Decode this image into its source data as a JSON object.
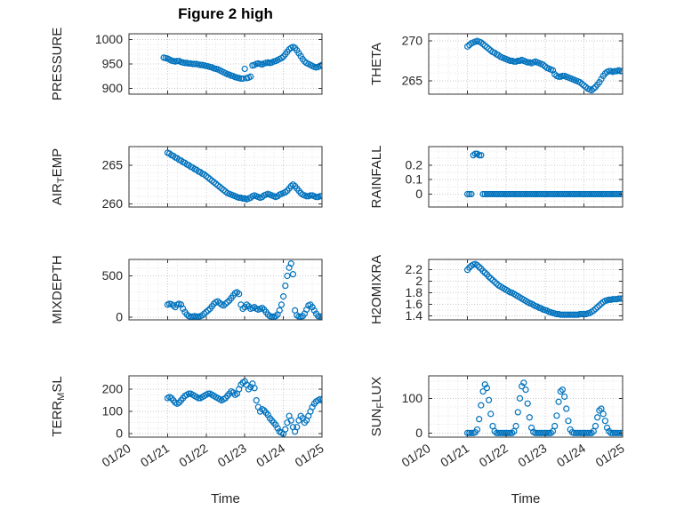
{
  "figure": {
    "title": "Figure 2 high",
    "accent": "#0072BD",
    "axis_color": "#333333",
    "text_color": "#262626",
    "grid_major": "#c9c9c9",
    "grid_minor": "#e6e6e6",
    "background": "#ffffff"
  },
  "xaxis": {
    "label": "Time",
    "xlim": [
      0,
      5
    ],
    "ticks": [
      0,
      1,
      2,
      3,
      4,
      5
    ],
    "tick_labels": [
      "01/20",
      "01/21",
      "01/22",
      "01/23",
      "01/24",
      "01/25"
    ],
    "minor_step": 0.25
  },
  "chart_data": [
    {
      "id": "pressure",
      "type": "scatter",
      "ylabel": "PRESSURE",
      "ylabel_parts": [
        {
          "t": "PRESSURE"
        }
      ],
      "yticks": [
        900,
        950,
        1000
      ],
      "ytick_labels": [
        "900",
        "950",
        "1000"
      ],
      "ylim": [
        888,
        1012
      ],
      "y_minor_step": 10,
      "show_x_tick_labels": false,
      "x_start": 0.9,
      "x_step": 0.05,
      "y": [
        963,
        962,
        961,
        959,
        957,
        956,
        955,
        956,
        956,
        954,
        953,
        952,
        952,
        951,
        951,
        950,
        950,
        950,
        949,
        948,
        948,
        947,
        946,
        945,
        944,
        943,
        941,
        940,
        939,
        937,
        935,
        933,
        931,
        929,
        928,
        926,
        925,
        923,
        922,
        921,
        920,
        920,
        940,
        921,
        922,
        924,
        947,
        948,
        950,
        951,
        950,
        949,
        951,
        952,
        953,
        952,
        953,
        955,
        956,
        958,
        960,
        962,
        965,
        970,
        975,
        980,
        983,
        985,
        983,
        978,
        972,
        966,
        960,
        955,
        952,
        950,
        948,
        946,
        944,
        943,
        944,
        946,
        948
      ]
    },
    {
      "id": "theta",
      "type": "scatter",
      "ylabel": "THETA",
      "ylabel_parts": [
        {
          "t": "THETA"
        }
      ],
      "yticks": [
        265,
        270
      ],
      "ytick_labels": [
        "265",
        "270"
      ],
      "ylim": [
        263.3,
        270.9
      ],
      "y_minor_step": 1,
      "show_x_tick_labels": false,
      "x_start": 1.0,
      "x_step": 0.05,
      "y": [
        269.3,
        269.5,
        269.7,
        269.8,
        269.9,
        270.0,
        269.9,
        269.8,
        269.6,
        269.4,
        269.2,
        269.0,
        268.8,
        268.6,
        268.5,
        268.3,
        268.2,
        268.0,
        267.9,
        267.8,
        267.7,
        267.6,
        267.5,
        267.5,
        267.4,
        267.4,
        267.5,
        267.5,
        267.6,
        267.5,
        267.4,
        267.3,
        267.3,
        267.2,
        267.3,
        267.4,
        267.3,
        267.2,
        267.1,
        267.0,
        266.8,
        266.6,
        266.5,
        266.4,
        266.3,
        265.8,
        265.6,
        265.5,
        265.5,
        265.6,
        265.6,
        265.5,
        265.4,
        265.3,
        265.2,
        265.1,
        265.0,
        264.9,
        264.8,
        264.6,
        264.4,
        264.2,
        264.0,
        263.9,
        263.8,
        264.0,
        264.2,
        264.5,
        264.8,
        265.2,
        265.6,
        265.9,
        266.1,
        266.2,
        266.2,
        266.1,
        266.2,
        266.2,
        266.3,
        266.2,
        266.2
      ]
    },
    {
      "id": "air-temp",
      "type": "scatter",
      "ylabel": "AIR_TEMP",
      "ylabel_parts": [
        {
          "t": "AIR"
        },
        {
          "t": "T",
          "sub": true
        },
        {
          "t": "EMP"
        }
      ],
      "yticks": [
        260,
        265
      ],
      "ytick_labels": [
        "260",
        "265"
      ],
      "ylim": [
        259.6,
        267.4
      ],
      "y_minor_step": 1,
      "show_x_tick_labels": false,
      "x_start": 1.0,
      "x_step": 0.05,
      "y": [
        266.6,
        266.5,
        266.3,
        266.2,
        266.0,
        265.9,
        265.7,
        265.6,
        265.4,
        265.3,
        265.1,
        265.0,
        264.8,
        264.7,
        264.5,
        264.4,
        264.2,
        264.1,
        263.9,
        263.8,
        263.6,
        263.4,
        263.2,
        263.0,
        262.8,
        262.6,
        262.4,
        262.2,
        262.0,
        261.8,
        261.6,
        261.4,
        261.3,
        261.2,
        261.1,
        261.0,
        260.9,
        260.8,
        260.8,
        260.7,
        260.7,
        260.6,
        260.7,
        260.8,
        261.0,
        261.1,
        261.0,
        260.9,
        260.8,
        260.9,
        261.1,
        261.2,
        261.3,
        261.2,
        261.1,
        261.0,
        260.9,
        261.0,
        261.2,
        261.3,
        261.4,
        261.5,
        261.7,
        262.0,
        262.3,
        262.5,
        262.3,
        262.0,
        261.7,
        261.4,
        261.2,
        261.1,
        261.0,
        261.0,
        261.1,
        261.1,
        261.0,
        260.9,
        260.9,
        261.0,
        261.0
      ]
    },
    {
      "id": "rainfall",
      "type": "scatter",
      "ylabel": "RAINFALL",
      "ylabel_parts": [
        {
          "t": "RAINFALL"
        }
      ],
      "yticks": [
        0,
        0.1,
        0.2
      ],
      "ytick_labels": [
        "0",
        "0.1",
        "0.2"
      ],
      "ylim": [
        -0.09,
        0.33
      ],
      "y_minor_step": 0.05,
      "show_x_tick_labels": false,
      "x_start": 1.0,
      "x_step": 0.05,
      "y": [
        0,
        0,
        0,
        0.27,
        0.28,
        0.28,
        0.27,
        0.27,
        0,
        0,
        0,
        0,
        0,
        0,
        0,
        0,
        0,
        0,
        0,
        0,
        0,
        0,
        0,
        0,
        0,
        0,
        0,
        0,
        0,
        0,
        0,
        0,
        0,
        0,
        0,
        0,
        0,
        0,
        0,
        0,
        0,
        0,
        0,
        0,
        0,
        0,
        0,
        0,
        0,
        0,
        0,
        0,
        0,
        0,
        0,
        0,
        0,
        0,
        0,
        0,
        0,
        0,
        0,
        0,
        0,
        0,
        0,
        0,
        0,
        0,
        0,
        0,
        0,
        0,
        0,
        0,
        0,
        0,
        0,
        0,
        0
      ]
    },
    {
      "id": "mixdepth",
      "type": "scatter",
      "ylabel": "MIXDEPTH",
      "ylabel_parts": [
        {
          "t": "MIXDEPTH"
        }
      ],
      "yticks": [
        0,
        500
      ],
      "ytick_labels": [
        "0",
        "500"
      ],
      "ylim": [
        -35,
        700
      ],
      "y_minor_step": 100,
      "show_x_tick_labels": false,
      "x_start": 1.0,
      "x_step": 0.05,
      "y": [
        150,
        160,
        155,
        140,
        120,
        150,
        160,
        150,
        100,
        60,
        30,
        10,
        5,
        5,
        10,
        5,
        5,
        10,
        20,
        40,
        60,
        80,
        100,
        130,
        160,
        180,
        190,
        170,
        150,
        140,
        160,
        180,
        200,
        230,
        260,
        290,
        300,
        280,
        150,
        100,
        120,
        150,
        130,
        100,
        110,
        120,
        100,
        90,
        100,
        110,
        90,
        60,
        30,
        10,
        5,
        5,
        10,
        30,
        80,
        150,
        250,
        380,
        500,
        600,
        650,
        520,
        80,
        20,
        5,
        5,
        10,
        40,
        90,
        140,
        150,
        120,
        80,
        40,
        10,
        5,
        5
      ]
    },
    {
      "id": "h2omixra",
      "type": "scatter",
      "ylabel": "H2OMIXRA",
      "ylabel_parts": [
        {
          "t": "H2OMIXRA"
        }
      ],
      "yticks": [
        1.4,
        1.6,
        1.8,
        2,
        2.2
      ],
      "ytick_labels": [
        "1.4",
        "1.6",
        "1.8",
        "2",
        "2.2"
      ],
      "ylim": [
        1.33,
        2.38
      ],
      "y_minor_step": 0.1,
      "show_x_tick_labels": false,
      "x_start": 1.0,
      "x_step": 0.05,
      "y": [
        2.2,
        2.24,
        2.27,
        2.29,
        2.3,
        2.28,
        2.25,
        2.22,
        2.18,
        2.15,
        2.12,
        2.08,
        2.05,
        2.02,
        1.99,
        1.96,
        1.93,
        1.91,
        1.89,
        1.87,
        1.85,
        1.83,
        1.81,
        1.8,
        1.78,
        1.76,
        1.74,
        1.72,
        1.7,
        1.68,
        1.66,
        1.64,
        1.62,
        1.61,
        1.59,
        1.57,
        1.56,
        1.54,
        1.53,
        1.51,
        1.5,
        1.49,
        1.47,
        1.46,
        1.45,
        1.44,
        1.43,
        1.43,
        1.42,
        1.42,
        1.42,
        1.42,
        1.42,
        1.42,
        1.42,
        1.42,
        1.42,
        1.42,
        1.43,
        1.43,
        1.43,
        1.43,
        1.44,
        1.45,
        1.47,
        1.49,
        1.52,
        1.55,
        1.58,
        1.61,
        1.64,
        1.66,
        1.67,
        1.68,
        1.68,
        1.69,
        1.69,
        1.69,
        1.7,
        1.7,
        1.7
      ]
    },
    {
      "id": "terr-msl",
      "type": "scatter",
      "ylabel": "TERR_MSL",
      "ylabel_parts": [
        {
          "t": "TERR"
        },
        {
          "t": "M",
          "sub": true
        },
        {
          "t": "SL"
        }
      ],
      "yticks": [
        0,
        100,
        200
      ],
      "ytick_labels": [
        "0",
        "100",
        "200"
      ],
      "ylim": [
        -15,
        260
      ],
      "y_minor_step": 25,
      "show_x_tick_labels": true,
      "x_start": 1.0,
      "x_step": 0.05,
      "y": [
        160,
        165,
        160,
        150,
        140,
        135,
        140,
        150,
        160,
        170,
        175,
        180,
        180,
        175,
        170,
        165,
        160,
        160,
        165,
        170,
        175,
        180,
        180,
        175,
        170,
        165,
        160,
        155,
        150,
        155,
        160,
        170,
        180,
        190,
        185,
        175,
        180,
        200,
        220,
        230,
        235,
        220,
        200,
        210,
        225,
        205,
        150,
        120,
        100,
        110,
        105,
        95,
        85,
        70,
        60,
        50,
        40,
        25,
        10,
        5,
        0,
        20,
        50,
        80,
        60,
        30,
        10,
        30,
        60,
        80,
        70,
        50,
        60,
        80,
        100,
        120,
        135,
        145,
        150,
        155,
        150
      ]
    },
    {
      "id": "sun-flux",
      "type": "scatter",
      "ylabel": "SUN_FLUX",
      "ylabel_parts": [
        {
          "t": "SUN"
        },
        {
          "t": "F",
          "sub": true
        },
        {
          "t": "LUX"
        }
      ],
      "yticks": [
        0,
        100
      ],
      "ytick_labels": [
        "0",
        "100"
      ],
      "ylim": [
        -12,
        165
      ],
      "y_minor_step": 25,
      "show_x_tick_labels": true,
      "x_start": 1.0,
      "x_step": 0.05,
      "y": [
        0,
        0,
        0,
        0,
        2,
        10,
        40,
        80,
        120,
        140,
        130,
        95,
        55,
        20,
        5,
        0,
        0,
        0,
        0,
        0,
        0,
        0,
        0,
        0,
        5,
        20,
        60,
        100,
        135,
        145,
        125,
        85,
        45,
        15,
        3,
        0,
        0,
        0,
        0,
        0,
        0,
        0,
        0,
        0,
        5,
        20,
        50,
        90,
        120,
        125,
        105,
        70,
        35,
        10,
        2,
        0,
        0,
        0,
        0,
        0,
        0,
        0,
        0,
        0,
        0,
        5,
        20,
        45,
        65,
        70,
        55,
        35,
        15,
        5,
        0,
        0,
        0,
        0,
        0,
        0,
        0
      ]
    }
  ]
}
